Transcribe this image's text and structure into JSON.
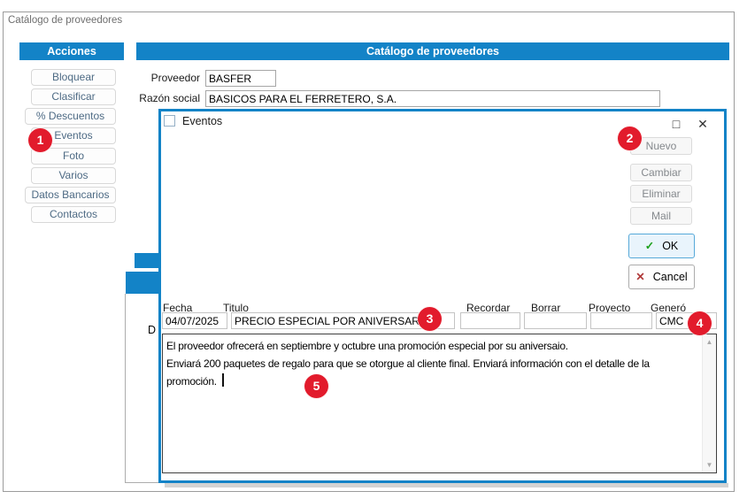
{
  "app": {
    "window_title": "Catálogo de proveedores"
  },
  "sidebar": {
    "header": "Acciones",
    "buttons": [
      "Bloquear",
      "Clasificar",
      "% Descuentos",
      "Eventos",
      "Foto",
      "Varios",
      "Datos Bancarios",
      "Contactos"
    ]
  },
  "main": {
    "header": "Catálogo de proveedores",
    "proveedor": {
      "label": "Proveedor",
      "value": "BASFER"
    },
    "razon_social": {
      "label": "Razón social",
      "value": "BASICOS PARA EL FERRETERO, S.A."
    },
    "clipped_label": "D"
  },
  "dialog": {
    "title": "Eventos",
    "buttons": {
      "nuevo": "Nuevo",
      "cambiar": "Cambiar",
      "eliminar": "Eliminar",
      "mail": "Mail",
      "ok": "OK",
      "cancel": "Cancel"
    },
    "fields": {
      "fecha": {
        "label": "Fecha",
        "value": "04/07/2025"
      },
      "titulo": {
        "label": "Titulo",
        "value": "PRECIO ESPECIAL POR ANIVERSARIO"
      },
      "recordar": {
        "label": "Recordar",
        "value": ""
      },
      "borrar": {
        "label": "Borrar",
        "value": ""
      },
      "proyecto": {
        "label": "Proyecto",
        "value": ""
      },
      "genero": {
        "label": "Generó",
        "value": "CMC"
      }
    },
    "description": "El proveedor ofrecerá en septiembre y octubre una promoción especial por su aniversaio.\nEnviará 200 paquetes de regalo para que se otorgue al cliente final. Enviará información con el detalle de la\npromoción."
  },
  "badges": {
    "b1": "1",
    "b2": "2",
    "b3": "3",
    "b4": "4",
    "b5": "5"
  },
  "icons": {
    "maximize": "□",
    "close": "✕",
    "ok_check": "✓",
    "cancel_x": "✕",
    "scroll_up": "▲",
    "scroll_down": "▼"
  },
  "colors": {
    "accent_blue": "#1383C7",
    "badge_red": "#E21B2C"
  }
}
